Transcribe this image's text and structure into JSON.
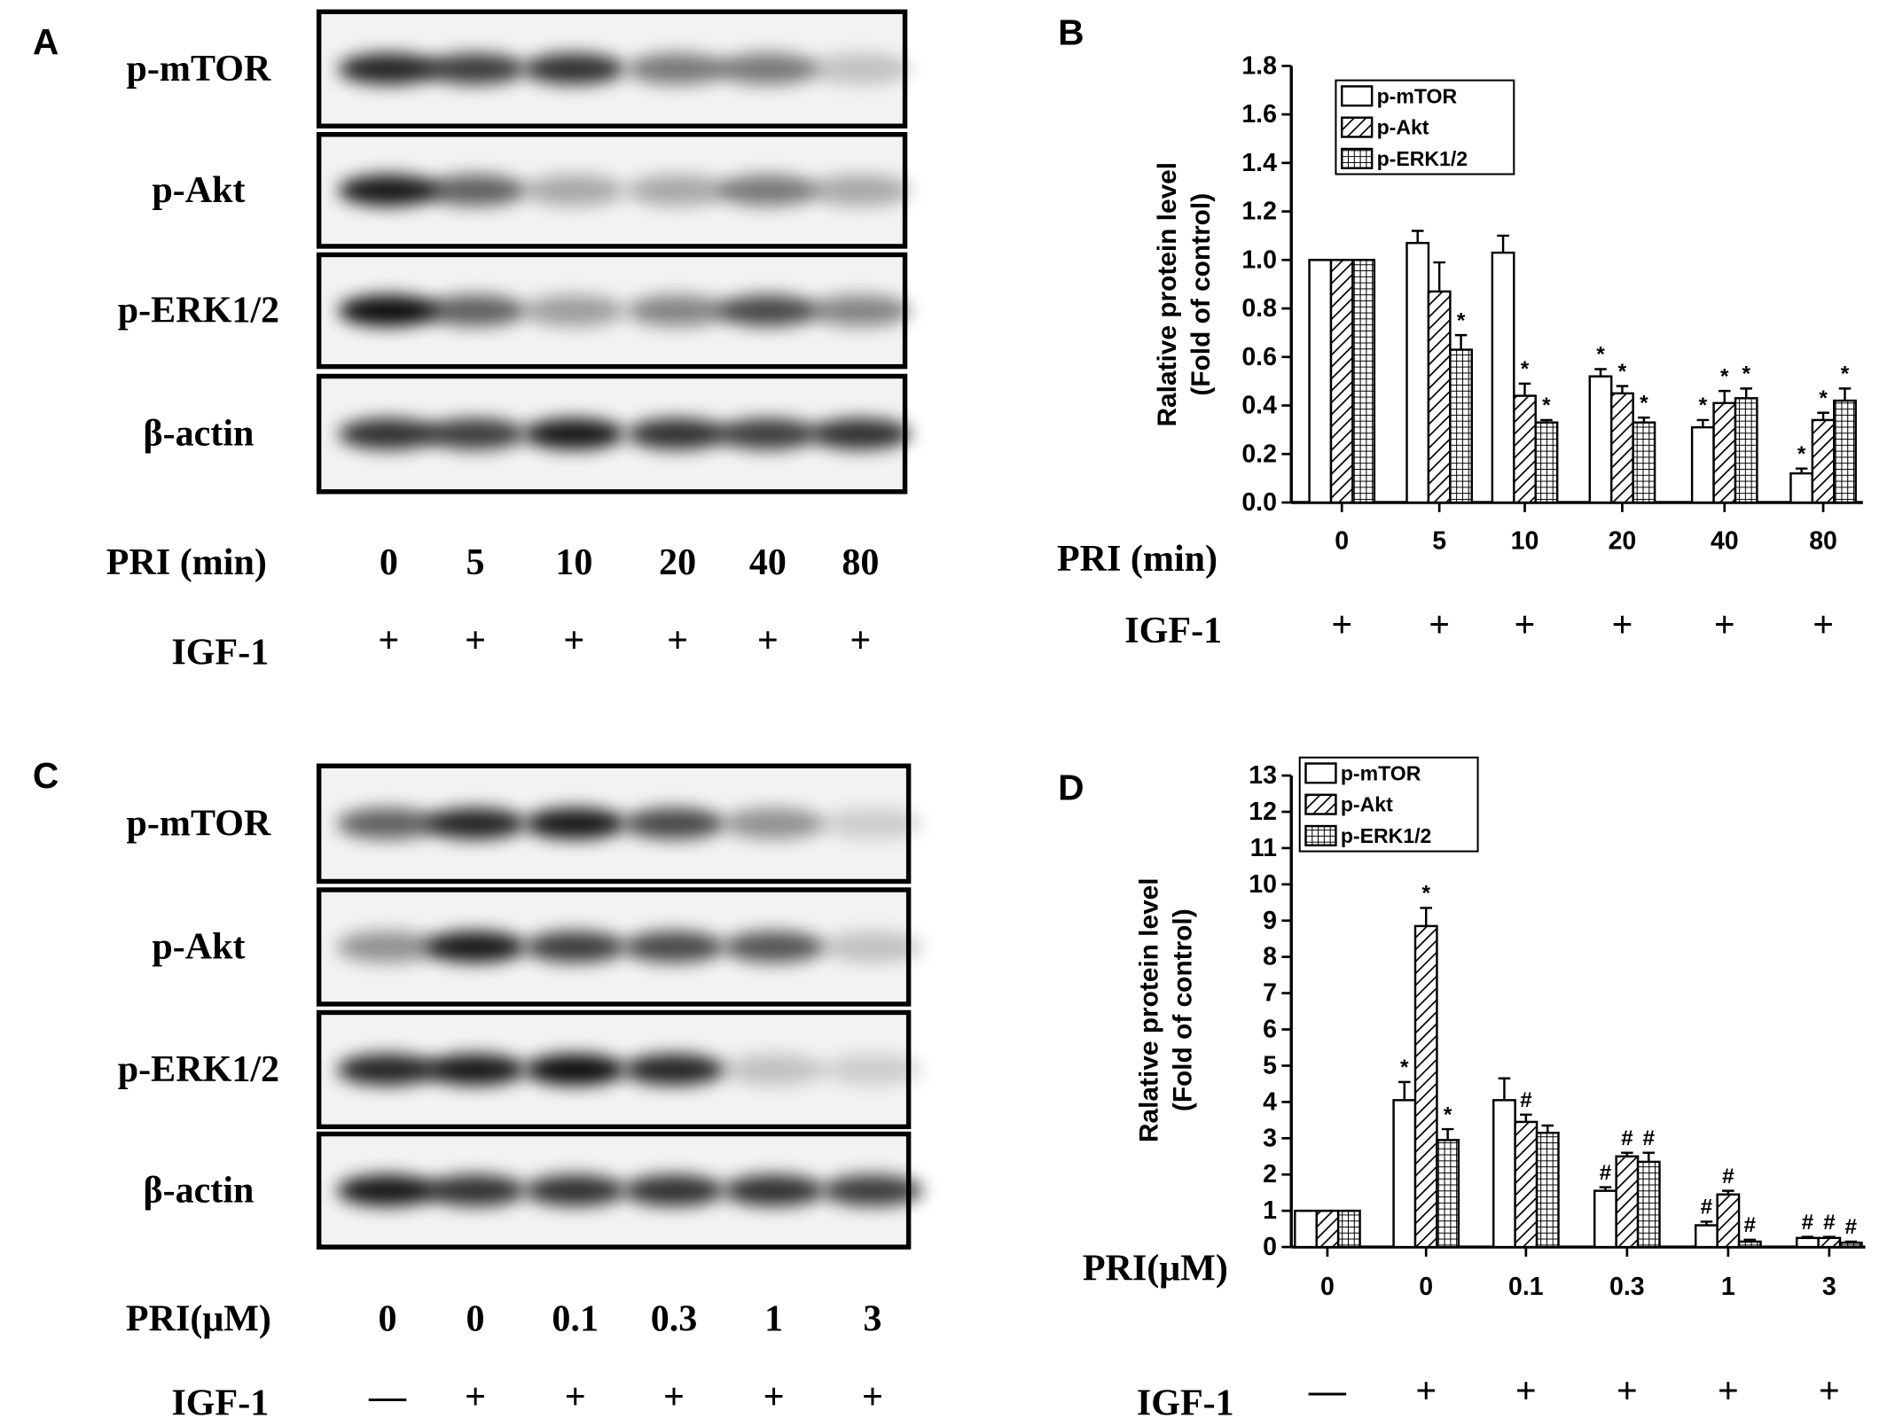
{
  "blots": [
    {
      "panel": "A",
      "rows": [
        "p-mTOR",
        "p-Akt",
        "p-ERK1/2",
        "β-actin"
      ],
      "lane_label": "PRI (min)",
      "lanes": [
        "0",
        "5",
        "10",
        "20",
        "40",
        "80"
      ],
      "treat_label": "IGF-1",
      "treat": [
        "+",
        "+",
        "+",
        "+",
        "+",
        "+"
      ]
    },
    {
      "panel": "C",
      "rows": [
        "p-mTOR",
        "p-Akt",
        "p-ERK1/2",
        "β-actin"
      ],
      "lane_label": "PRI(μM)",
      "lanes": [
        "0",
        "0",
        "0.1",
        "0.3",
        "1",
        "3"
      ],
      "treat_label": "IGF-1",
      "treat": [
        "—",
        "+",
        "+",
        "+",
        "+",
        "+"
      ]
    }
  ],
  "chart_data": [
    {
      "type": "bar",
      "panel": "B",
      "ylabel": [
        "Ralative protein  level",
        "(Fold of control)"
      ],
      "xlabel": "PRI (min)",
      "categories": [
        "0",
        "5",
        "10",
        "20",
        "40",
        "80"
      ],
      "row_label": "IGF-1",
      "row_values": [
        "+",
        "+",
        "+",
        "+",
        "+",
        "+"
      ],
      "ylim": [
        0,
        1.8
      ],
      "yticks": [
        {
          "value": 0,
          "label": "0.0"
        },
        0.2,
        0.4,
        0.6,
        0.8,
        {
          "value": 1,
          "label": "1.0"
        },
        1.2,
        1.4,
        1.6,
        1.8
      ],
      "legend": "top-left",
      "series": [
        {
          "name": "p-mTOR",
          "color": "#000000",
          "pattern": "none",
          "values": [
            1.0,
            1.07,
            1.03,
            0.52,
            0.31,
            0.12
          ],
          "errors": [
            0,
            0.05,
            0.07,
            0.03,
            0.03,
            0.02
          ],
          "annotations": [
            null,
            null,
            null,
            "*",
            "*",
            "*"
          ]
        },
        {
          "name": "p-Akt",
          "color": "#000000",
          "pattern": "diagonal",
          "values": [
            1.0,
            0.87,
            0.44,
            0.45,
            0.41,
            0.34
          ],
          "errors": [
            0,
            0.12,
            0.05,
            0.03,
            0.05,
            0.03
          ],
          "annotations": [
            null,
            null,
            "*",
            "*",
            "*",
            "*"
          ]
        },
        {
          "name": "p-ERK1/2",
          "color": "#000000",
          "pattern": "grid",
          "values": [
            1.0,
            0.63,
            0.33,
            0.33,
            0.43,
            0.42
          ],
          "errors": [
            0,
            0.06,
            0.01,
            0.02,
            0.04,
            0.05
          ],
          "annotations": [
            null,
            "*",
            "*",
            "*",
            "*",
            "*"
          ]
        }
      ]
    },
    {
      "type": "bar",
      "panel": "D",
      "ylabel": [
        "Ralative protein  level",
        "(Fold of control)"
      ],
      "xlabel": "PRI(μM)",
      "categories": [
        "0",
        "0",
        "0.1",
        "0.3",
        "1",
        "3"
      ],
      "row_label": "IGF-1",
      "row_values": [
        "—",
        "+",
        "+",
        "+",
        "+",
        "+"
      ],
      "ylim": [
        0,
        13
      ],
      "yticks": [
        0,
        1,
        2,
        3,
        4,
        5,
        6,
        7,
        8,
        9,
        10,
        11,
        12,
        13
      ],
      "legend": "top-left",
      "series": [
        {
          "name": "p-mTOR",
          "color": "#000000",
          "pattern": "none",
          "values": [
            1.0,
            4.05,
            4.05,
            1.55,
            0.6,
            0.25
          ],
          "errors": [
            0,
            0.5,
            0.6,
            0.1,
            0.1,
            0.03
          ],
          "annotations": [
            null,
            "*",
            null,
            "#",
            "#",
            "#"
          ]
        },
        {
          "name": "p-Akt",
          "color": "#000000",
          "pattern": "diagonal",
          "values": [
            1.0,
            8.85,
            3.45,
            2.5,
            1.45,
            0.25
          ],
          "errors": [
            0,
            0.5,
            0.2,
            0.1,
            0.1,
            0.03
          ],
          "annotations": [
            null,
            "*",
            "#",
            "#",
            "#",
            "#"
          ]
        },
        {
          "name": "p-ERK1/2",
          "color": "#000000",
          "pattern": "grid",
          "values": [
            1.0,
            2.95,
            3.15,
            2.35,
            0.15,
            0.12
          ],
          "errors": [
            0,
            0.3,
            0.2,
            0.25,
            0.05,
            0.03
          ],
          "annotations": [
            null,
            "*",
            null,
            "#",
            "#",
            "#"
          ]
        }
      ]
    }
  ]
}
